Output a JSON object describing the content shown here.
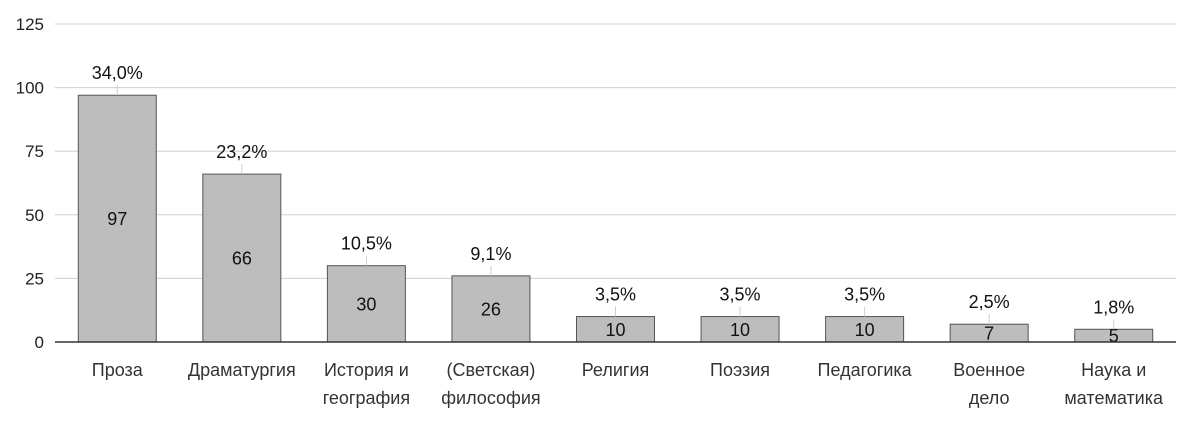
{
  "chart_data": {
    "type": "bar",
    "title": "",
    "xlabel": "",
    "ylabel": "",
    "ylim": [
      0,
      125
    ],
    "yticks": [
      0,
      25,
      50,
      75,
      100,
      125
    ],
    "grid": true,
    "categories": [
      [
        "Проза"
      ],
      [
        "Драматургия"
      ],
      [
        "История и",
        "география"
      ],
      [
        "(Светская)",
        "философия"
      ],
      [
        "Религия"
      ],
      [
        "Поэзия"
      ],
      [
        "Педагогика"
      ],
      [
        "Военное",
        "дело"
      ],
      [
        "Наука и",
        "математика"
      ]
    ],
    "values": [
      97,
      66,
      30,
      26,
      10,
      10,
      10,
      7,
      5
    ],
    "value_labels": [
      "97",
      "66",
      "30",
      "26",
      "10",
      "10",
      "10",
      "7",
      "5"
    ],
    "percent_labels": [
      "34,0%",
      "23,2%",
      "10,5%",
      "9,1%",
      "3,5%",
      "3,5%",
      "3,5%",
      "2,5%",
      "1,8%"
    ],
    "colors": {
      "bar_fill": "#bdbdbd",
      "bar_stroke": "#555555",
      "grid": "#d0d0d0"
    }
  }
}
